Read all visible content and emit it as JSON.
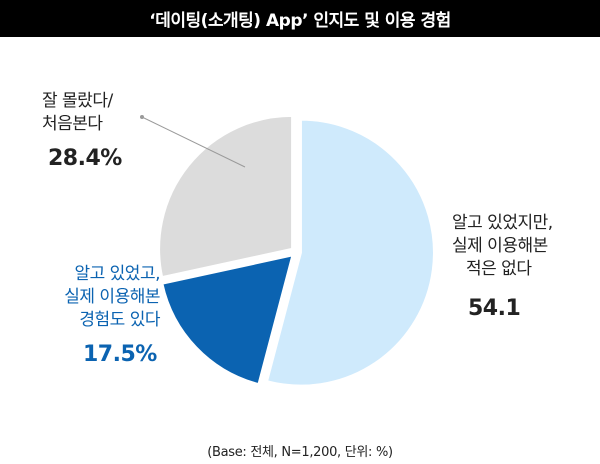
{
  "title": "‘데이팅(소개팅) App’ 인지도 및 이용 경험",
  "footnote": "(Base: 전체, N=1,200, 단위: %)",
  "chart_data": {
    "type": "pie",
    "slices": [
      {
        "label_lines": [
          "알고 있었지만,",
          "실제 이용해본",
          "적은 없다"
        ],
        "value": 54.1,
        "value_label": "54.1",
        "color": "#cfeafc"
      },
      {
        "label_lines": [
          "알고 있었고,",
          "실제 이용해본",
          "경험도 있다"
        ],
        "value": 17.5,
        "value_label": "17.5%",
        "color": "#0b63b1"
      },
      {
        "label_lines": [
          "잘 몰랐다/",
          "처음본다"
        ],
        "value": 28.4,
        "value_label": "28.4%",
        "color": "#dcdcdc"
      }
    ]
  }
}
